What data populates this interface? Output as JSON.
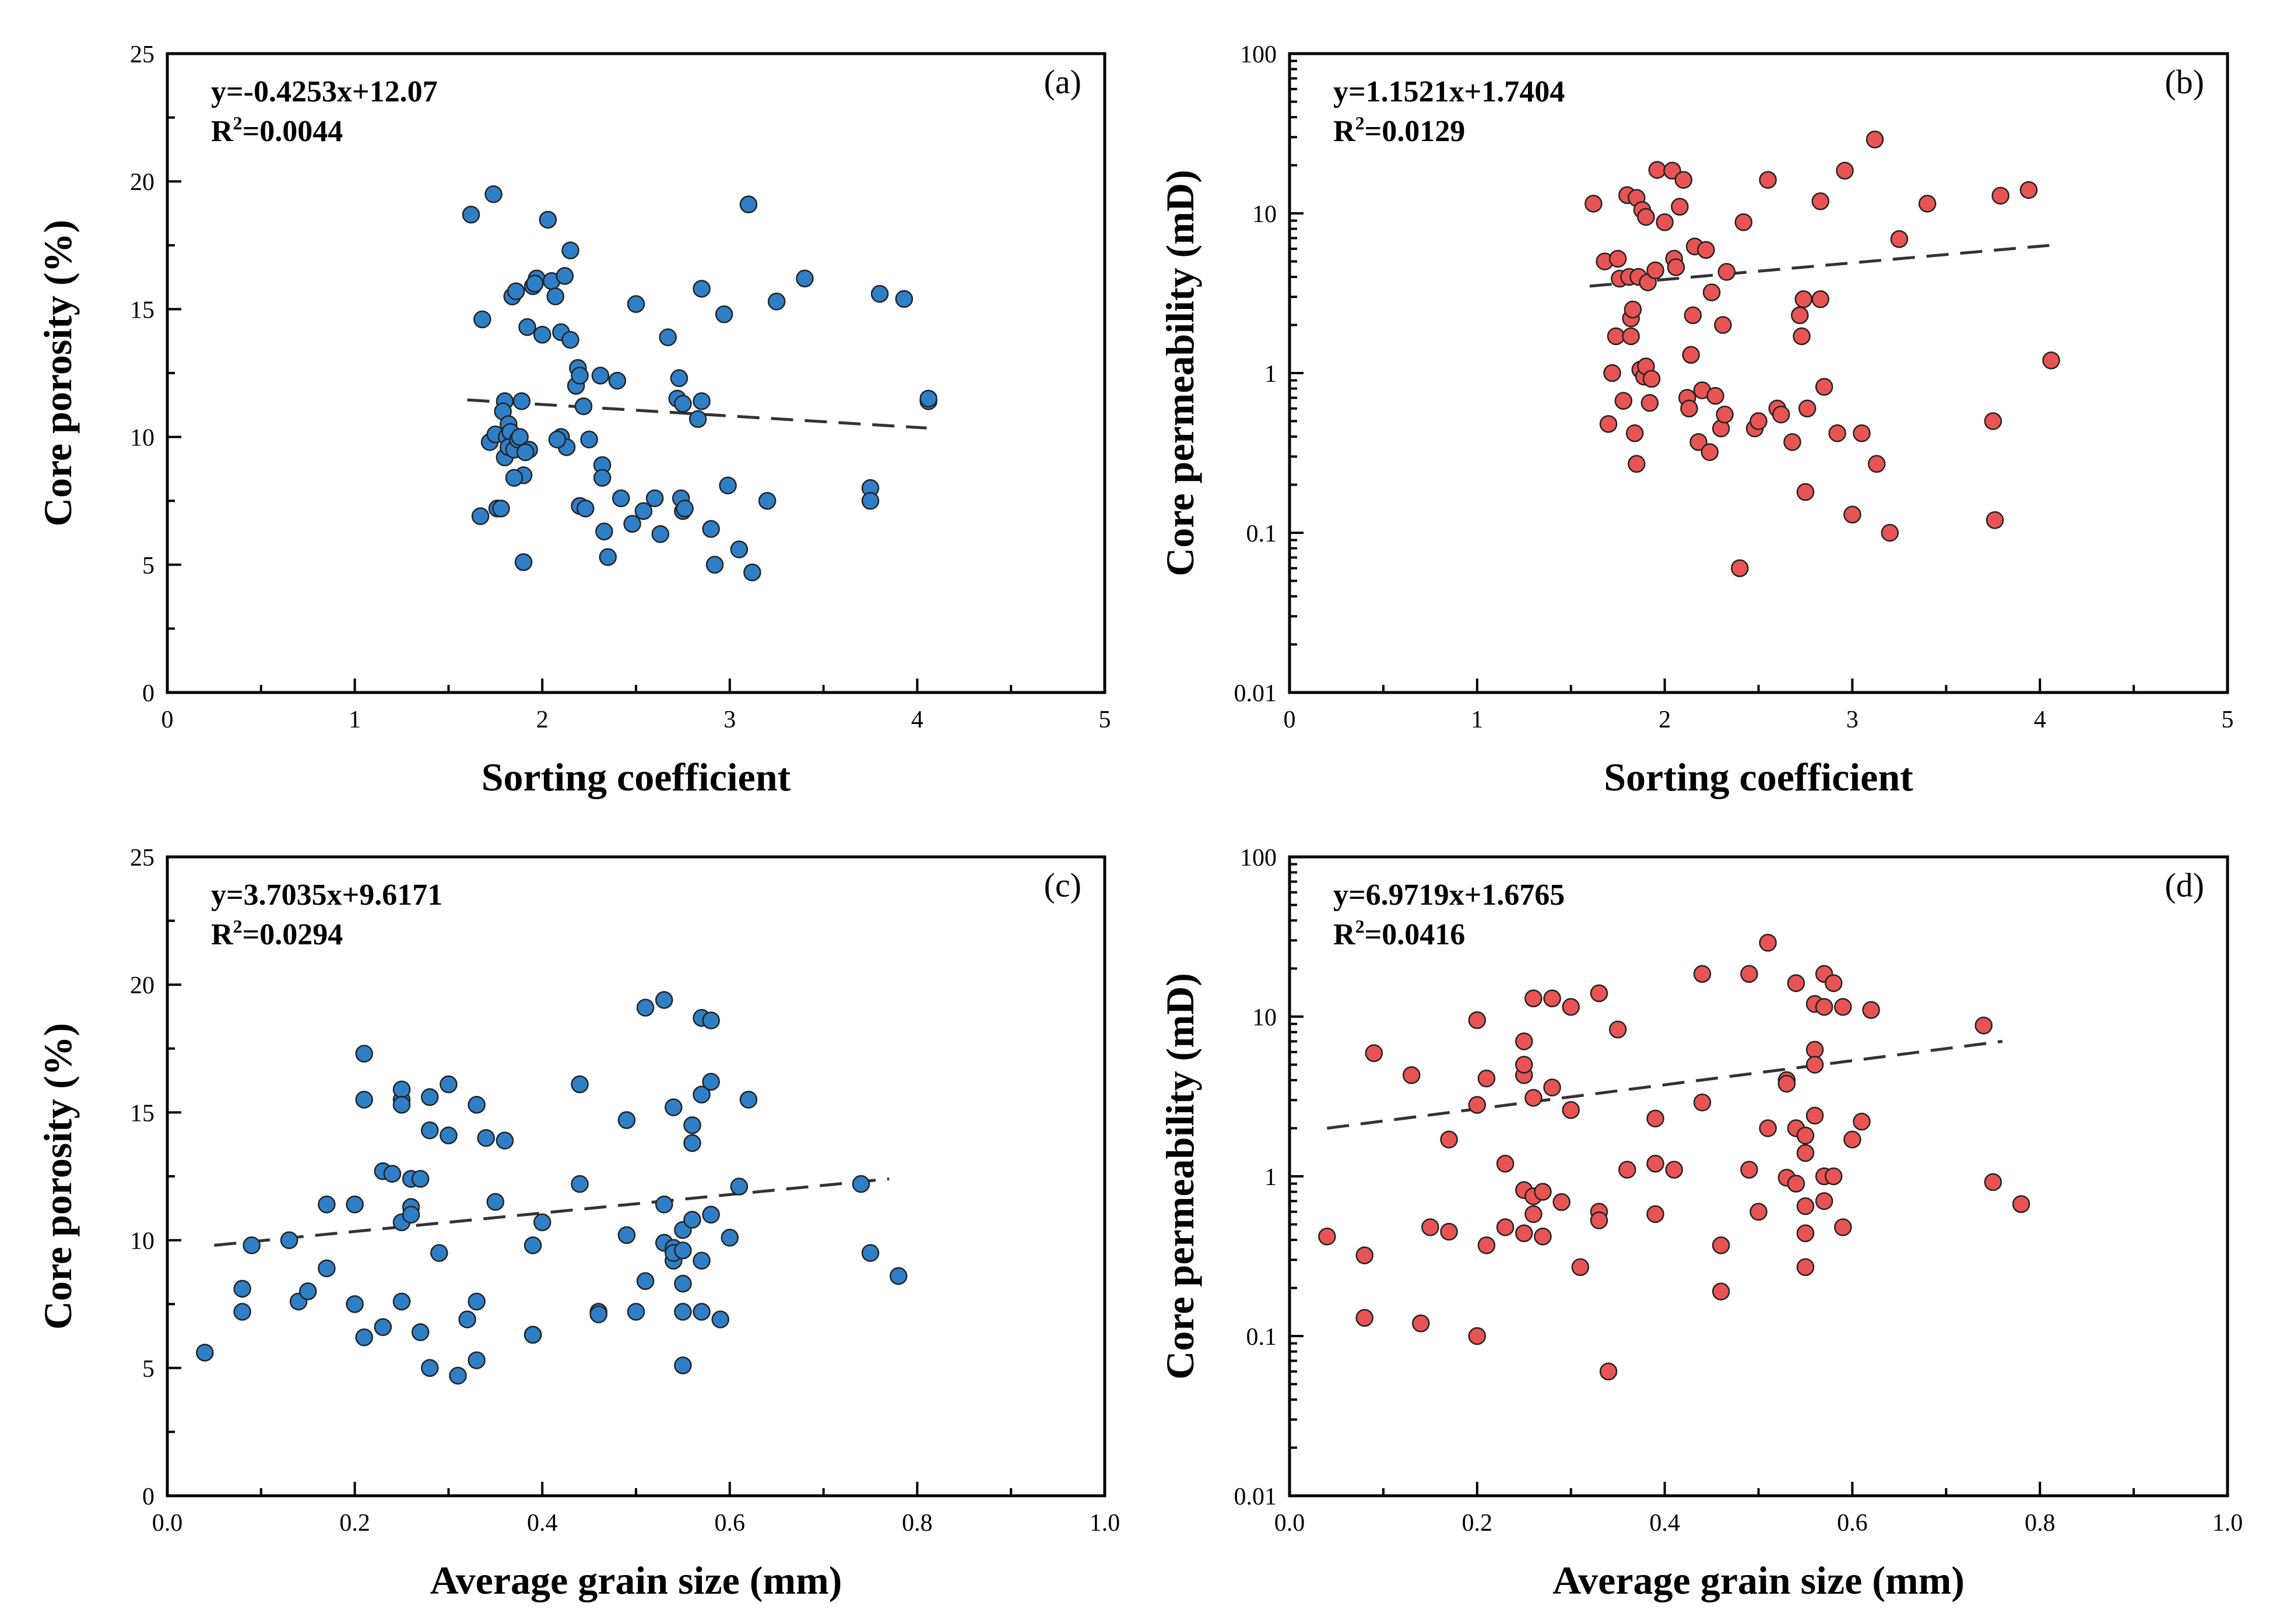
{
  "chart_data": [
    {
      "type": "scatter",
      "panel_label": "(a)",
      "title": "",
      "equation": "y=-0.4253x+12.07",
      "r2_prefix": "R",
      "r2_sup": "2",
      "r2_value": "=0.0044",
      "xlabel": "Sorting coefficient",
      "ylabel": "Core porosity (%)",
      "xscale": "linear",
      "yscale": "linear",
      "xlim": [
        0,
        5
      ],
      "ylim": [
        0,
        25
      ],
      "xticks": [
        0,
        1,
        2,
        3,
        4,
        5
      ],
      "yticks": [
        0,
        5,
        10,
        15,
        20,
        25
      ],
      "xtick_labels": [
        "0",
        "1",
        "2",
        "3",
        "4",
        "5"
      ],
      "ytick_labels": [
        "0",
        "5",
        "10",
        "15",
        "20",
        "25"
      ],
      "marker_color": "#2f7fc6",
      "fit_line": {
        "x": [
          1.6,
          4.05
        ],
        "y": [
          11.45,
          10.35
        ]
      },
      "x": [
        1.62,
        1.68,
        1.67,
        1.74,
        1.72,
        1.75,
        1.76,
        1.8,
        1.79,
        1.82,
        1.8,
        1.81,
        1.83,
        1.82,
        1.84,
        1.86,
        1.85,
        1.87,
        1.88,
        1.9,
        1.89,
        1.92,
        1.93,
        1.85,
        1.9,
        1.78,
        1.95,
        1.97,
        1.96,
        2.0,
        2.03,
        2.05,
        2.07,
        2.1,
        2.1,
        2.12,
        2.13,
        2.15,
        2.15,
        2.18,
        2.19,
        2.2,
        2.2,
        2.23,
        2.25,
        2.22,
        2.31,
        2.32,
        2.32,
        2.33,
        2.35,
        2.4,
        2.42,
        2.48,
        2.5,
        2.54,
        2.6,
        2.63,
        2.67,
        2.72,
        2.73,
        2.74,
        2.75,
        2.76,
        2.75,
        2.83,
        2.85,
        2.85,
        2.9,
        2.92,
        2.97,
        2.99,
        3.05,
        3.1,
        3.12,
        3.2,
        3.25,
        3.4,
        3.75,
        3.75,
        3.8,
        3.93,
        4.06,
        4.06,
        2.08,
        1.91
      ],
      "y": [
        18.7,
        14.6,
        6.9,
        19.5,
        9.8,
        10.1,
        7.2,
        11.4,
        11.0,
        10.5,
        9.2,
        10.0,
        10.2,
        9.6,
        15.5,
        15.7,
        9.5,
        9.9,
        10.0,
        8.5,
        11.4,
        14.3,
        9.5,
        8.4,
        5.1,
        7.2,
        15.9,
        16.2,
        16.0,
        14.0,
        18.5,
        16.1,
        15.5,
        14.1,
        10.0,
        16.3,
        9.6,
        17.3,
        13.8,
        12.0,
        12.7,
        12.4,
        7.3,
        7.2,
        9.9,
        11.2,
        12.4,
        8.9,
        8.4,
        6.3,
        5.3,
        12.2,
        7.6,
        6.6,
        15.2,
        7.1,
        7.6,
        6.2,
        13.9,
        11.5,
        12.3,
        7.6,
        7.1,
        7.2,
        11.3,
        10.7,
        15.8,
        11.4,
        6.4,
        5.0,
        14.8,
        8.1,
        5.6,
        19.1,
        4.7,
        7.5,
        15.3,
        16.2,
        8.0,
        7.5,
        15.6,
        15.4,
        11.4,
        11.5,
        9.9,
        9.4
      ]
    },
    {
      "type": "scatter",
      "panel_label": "(b)",
      "title": "",
      "equation": "y=1.1521x+1.7404",
      "r2_prefix": "R",
      "r2_sup": "2",
      "r2_value": "=0.0129",
      "xlabel": "Sorting coefficient",
      "ylabel": "Core permeability (mD)",
      "xscale": "linear",
      "yscale": "log",
      "xlim": [
        0,
        5
      ],
      "ylim": [
        0.01,
        100
      ],
      "xticks": [
        0,
        1,
        2,
        3,
        4,
        5
      ],
      "yticks": [
        0.01,
        0.1,
        1,
        10,
        100
      ],
      "xtick_labels": [
        "0",
        "1",
        "2",
        "3",
        "4",
        "5"
      ],
      "ytick_labels": [
        "0.01",
        "0.1",
        "1",
        "10",
        "100"
      ],
      "marker_color": "#e85454",
      "fit_line": {
        "x": [
          1.6,
          4.05
        ],
        "y": [
          3.5,
          6.3
        ]
      },
      "x": [
        1.62,
        1.68,
        1.7,
        1.72,
        1.74,
        1.75,
        1.76,
        1.78,
        1.8,
        1.81,
        1.82,
        1.82,
        1.83,
        1.84,
        1.85,
        1.85,
        1.86,
        1.87,
        1.88,
        1.89,
        1.9,
        1.9,
        1.91,
        1.92,
        1.93,
        1.95,
        1.96,
        2.0,
        2.04,
        2.05,
        2.06,
        2.08,
        2.1,
        2.12,
        2.13,
        2.14,
        2.15,
        2.16,
        2.18,
        2.2,
        2.22,
        2.24,
        2.25,
        2.27,
        2.3,
        2.31,
        2.32,
        2.33,
        2.4,
        2.42,
        2.48,
        2.5,
        2.55,
        2.6,
        2.62,
        2.68,
        2.72,
        2.73,
        2.74,
        2.75,
        2.76,
        2.83,
        2.83,
        2.85,
        2.92,
        2.96,
        3.0,
        3.05,
        3.12,
        3.13,
        3.2,
        3.25,
        3.4,
        3.75,
        3.76,
        3.79,
        3.94,
        4.06
      ],
      "y": [
        11.5,
        5.0,
        0.48,
        1.0,
        1.7,
        5.2,
        3.9,
        0.67,
        13.0,
        4.0,
        1.7,
        2.2,
        2.5,
        0.42,
        0.27,
        12.5,
        4.0,
        1.05,
        10.5,
        0.95,
        9.5,
        1.1,
        3.7,
        0.65,
        0.92,
        4.4,
        18.7,
        8.8,
        18.5,
        5.2,
        4.6,
        11.0,
        16.2,
        0.7,
        0.6,
        1.3,
        2.3,
        6.2,
        0.37,
        0.78,
        5.9,
        0.32,
        3.2,
        0.72,
        0.45,
        2.0,
        0.55,
        4.3,
        0.06,
        8.8,
        0.45,
        0.5,
        16.2,
        0.6,
        0.55,
        0.37,
        2.3,
        1.7,
        2.9,
        0.18,
        0.6,
        2.9,
        11.9,
        0.82,
        0.42,
        18.5,
        0.13,
        0.42,
        29.0,
        0.27,
        0.1,
        6.9,
        11.5,
        0.5,
        0.12,
        12.9,
        14.0,
        1.2
      ]
    },
    {
      "type": "scatter",
      "panel_label": "(c)",
      "title": "",
      "equation": "y=3.7035x+9.6171",
      "r2_prefix": "R",
      "r2_sup": "2",
      "r2_value": "=0.0294",
      "xlabel": "Average grain size (mm)",
      "ylabel": "Core porosity (%)",
      "xscale": "linear",
      "yscale": "linear",
      "xlim": [
        0.0,
        1.0
      ],
      "ylim": [
        0,
        25
      ],
      "xticks": [
        0.0,
        0.2,
        0.4,
        0.6,
        0.8,
        1.0
      ],
      "yticks": [
        0,
        5,
        10,
        15,
        20,
        25
      ],
      "xtick_labels": [
        "0.0",
        "0.2",
        "0.4",
        "0.6",
        "0.8",
        "1.0"
      ],
      "ytick_labels": [
        "0",
        "5",
        "10",
        "15",
        "20",
        "25"
      ],
      "marker_color": "#2f7fc6",
      "fit_line": {
        "x": [
          0.05,
          0.77
        ],
        "y": [
          9.8,
          12.4
        ]
      },
      "x": [
        0.04,
        0.08,
        0.08,
        0.09,
        0.13,
        0.14,
        0.15,
        0.17,
        0.17,
        0.2,
        0.2,
        0.2,
        0.21,
        0.21,
        0.21,
        0.23,
        0.23,
        0.24,
        0.25,
        0.25,
        0.25,
        0.25,
        0.25,
        0.26,
        0.26,
        0.26,
        0.27,
        0.27,
        0.28,
        0.28,
        0.28,
        0.29,
        0.3,
        0.3,
        0.31,
        0.32,
        0.33,
        0.33,
        0.33,
        0.34,
        0.35,
        0.36,
        0.39,
        0.39,
        0.39,
        0.4,
        0.44,
        0.44,
        0.46,
        0.46,
        0.49,
        0.49,
        0.5,
        0.51,
        0.51,
        0.53,
        0.53,
        0.53,
        0.54,
        0.54,
        0.54,
        0.54,
        0.55,
        0.55,
        0.55,
        0.55,
        0.55,
        0.56,
        0.56,
        0.56,
        0.57,
        0.57,
        0.57,
        0.57,
        0.58,
        0.58,
        0.58,
        0.59,
        0.6,
        0.61,
        0.62,
        0.74,
        0.75,
        0.78
      ],
      "y": [
        5.6,
        7.2,
        8.1,
        9.8,
        10.0,
        7.6,
        8.0,
        8.9,
        11.4,
        11.4,
        11.4,
        7.5,
        6.2,
        15.5,
        17.3,
        6.6,
        12.7,
        12.6,
        15.5,
        15.9,
        15.3,
        10.7,
        7.6,
        11.3,
        11.0,
        12.4,
        12.4,
        6.4,
        5.0,
        15.6,
        14.3,
        9.5,
        16.1,
        14.1,
        4.7,
        6.9,
        15.3,
        7.6,
        5.3,
        14.0,
        11.5,
        13.9,
        9.8,
        6.3,
        6.3,
        10.7,
        16.1,
        12.2,
        7.2,
        7.1,
        14.7,
        10.2,
        7.2,
        19.1,
        8.4,
        19.4,
        11.4,
        9.9,
        15.2,
        9.2,
        9.7,
        9.5,
        10.4,
        9.6,
        8.3,
        7.2,
        5.1,
        13.8,
        14.5,
        10.8,
        18.7,
        15.7,
        9.2,
        7.2,
        11.0,
        16.2,
        18.6,
        6.9,
        10.1,
        12.1,
        15.5,
        12.2,
        9.5,
        8.6
      ]
    },
    {
      "type": "scatter",
      "panel_label": "(d)",
      "title": "",
      "equation": "y=6.9719x+1.6765",
      "r2_prefix": "R",
      "r2_sup": "2",
      "r2_value": "=0.0416",
      "xlabel": "Average grain size (mm)",
      "ylabel": "Core permeability (mD)",
      "xscale": "linear",
      "yscale": "log",
      "xlim": [
        0.0,
        1.0
      ],
      "ylim": [
        0.01,
        100
      ],
      "xticks": [
        0.0,
        0.2,
        0.4,
        0.6,
        0.8,
        1.0
      ],
      "yticks": [
        0.01,
        0.1,
        1,
        10,
        100
      ],
      "xtick_labels": [
        "0.0",
        "0.2",
        "0.4",
        "0.6",
        "0.8",
        "1.0"
      ],
      "ytick_labels": [
        "0.01",
        "0.1",
        "1",
        "10",
        "100"
      ],
      "marker_color": "#e85454",
      "fit_line": {
        "x": [
          0.04,
          0.76
        ],
        "y": [
          2.0,
          7.0
        ]
      },
      "x": [
        0.04,
        0.08,
        0.08,
        0.09,
        0.13,
        0.14,
        0.15,
        0.17,
        0.17,
        0.2,
        0.2,
        0.2,
        0.21,
        0.21,
        0.23,
        0.23,
        0.25,
        0.25,
        0.25,
        0.25,
        0.25,
        0.26,
        0.26,
        0.26,
        0.26,
        0.27,
        0.27,
        0.28,
        0.28,
        0.29,
        0.3,
        0.3,
        0.31,
        0.33,
        0.33,
        0.33,
        0.34,
        0.35,
        0.36,
        0.39,
        0.39,
        0.39,
        0.41,
        0.44,
        0.44,
        0.46,
        0.46,
        0.49,
        0.49,
        0.5,
        0.51,
        0.51,
        0.53,
        0.53,
        0.53,
        0.54,
        0.54,
        0.54,
        0.55,
        0.55,
        0.55,
        0.55,
        0.55,
        0.56,
        0.56,
        0.56,
        0.56,
        0.57,
        0.57,
        0.57,
        0.57,
        0.58,
        0.58,
        0.59,
        0.59,
        0.6,
        0.61,
        0.62,
        0.74,
        0.75,
        0.78
      ],
      "y": [
        0.42,
        0.32,
        0.13,
        5.9,
        4.3,
        0.12,
        0.48,
        1.7,
        0.45,
        9.5,
        2.8,
        0.1,
        4.1,
        0.37,
        1.2,
        0.48,
        7.0,
        4.3,
        5.0,
        0.82,
        0.44,
        13.0,
        3.1,
        0.58,
        0.75,
        0.8,
        0.42,
        13.0,
        3.6,
        0.69,
        11.5,
        2.6,
        0.27,
        14.0,
        0.6,
        0.53,
        0.06,
        8.3,
        1.1,
        2.3,
        1.2,
        0.58,
        1.1,
        18.5,
        2.9,
        0.37,
        0.19,
        18.5,
        1.1,
        0.6,
        29.0,
        2.0,
        4.0,
        3.8,
        0.98,
        16.2,
        2.0,
        0.9,
        1.8,
        1.4,
        0.65,
        0.44,
        0.27,
        12.0,
        6.2,
        5.0,
        2.4,
        11.5,
        18.5,
        1.0,
        0.7,
        16.2,
        1.0,
        11.5,
        0.48,
        1.7,
        2.2,
        11.0,
        8.8,
        0.92,
        0.67
      ]
    }
  ]
}
